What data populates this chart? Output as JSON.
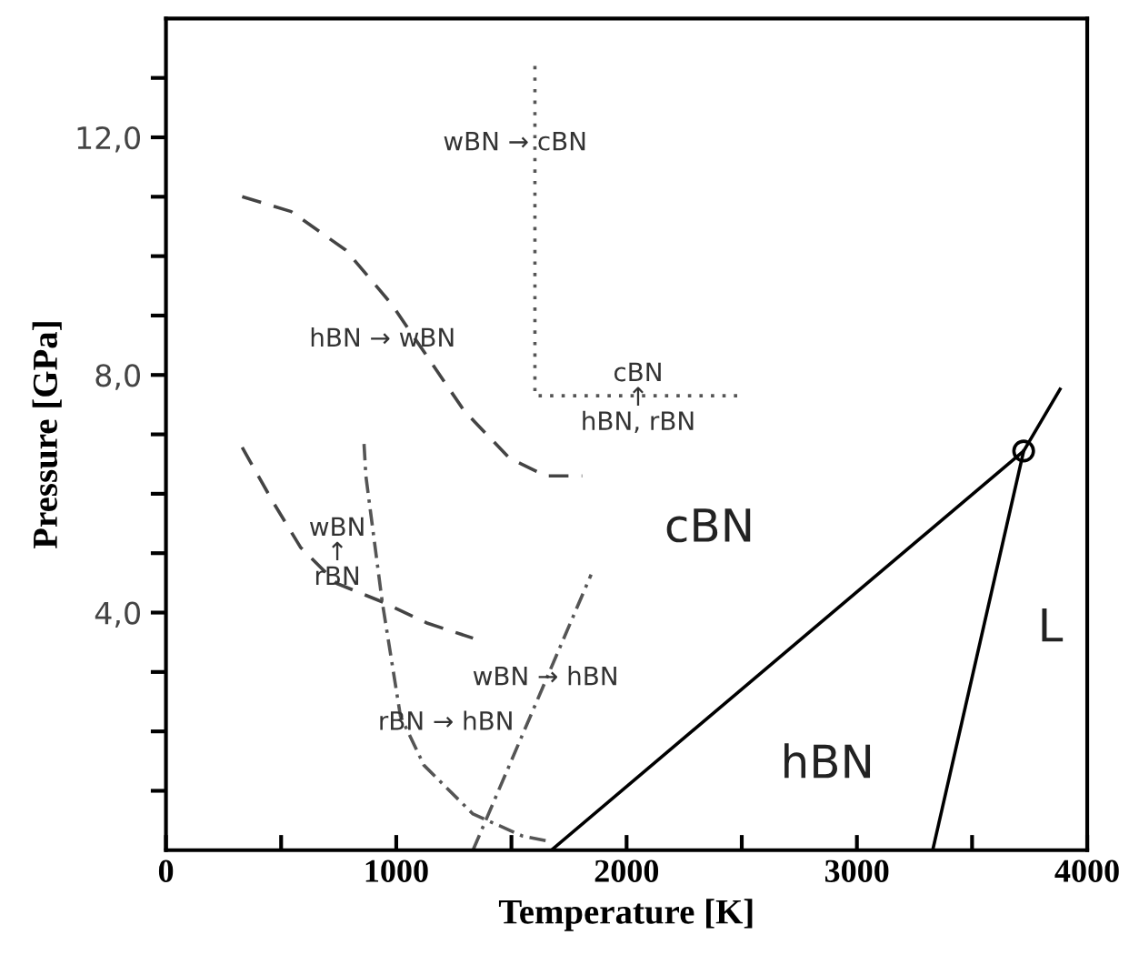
{
  "chart_data": {
    "type": "line",
    "xlabel": "Temperature [K]",
    "ylabel": "Pressure [GPa]",
    "xlim": [
      0,
      4000
    ],
    "ylim": [
      0,
      14
    ],
    "xticks": [
      0,
      {
        "value": 500,
        "label": null
      },
      1000,
      {
        "value": 1500,
        "label": null
      },
      2000,
      {
        "value": 2500,
        "label": null
      },
      3000,
      {
        "value": 3500,
        "label": null
      },
      4000
    ],
    "yticks": [
      {
        "value": 1,
        "label": null
      },
      {
        "value": 2,
        "label": null
      },
      {
        "value": 3,
        "label": null
      },
      {
        "value": 4,
        "label": "4,0"
      },
      {
        "value": 5,
        "label": null
      },
      {
        "value": 6,
        "label": null
      },
      {
        "value": 7,
        "label": null
      },
      {
        "value": 8,
        "label": "8,0"
      },
      {
        "value": 9,
        "label": null
      },
      {
        "value": 10,
        "label": null
      },
      {
        "value": 11,
        "label": null
      },
      {
        "value": 12,
        "label": "12,0"
      },
      {
        "value": 13,
        "label": null
      }
    ],
    "grid": false,
    "legend": false,
    "series": [
      {
        "color": "#000000",
        "line_style": "solid",
        "x": [
          1673,
          3724,
          3882
        ],
        "values": [
          0,
          6.72,
          7.76
        ]
      },
      {
        "color": "#000000",
        "line_style": "solid",
        "x": [
          3329,
          3724
        ],
        "values": [
          0,
          6.72
        ]
      },
      {
        "color": "#444444",
        "line_style": "dashed",
        "x": [
          331,
          544,
          781,
          978,
          1136,
          1294,
          1491,
          1649,
          1807
        ],
        "values": [
          11.0,
          10.75,
          10.1,
          9.2,
          8.3,
          7.4,
          6.6,
          6.3,
          6.3
        ]
      },
      {
        "color": "#444444",
        "line_style": "dashed",
        "x": [
          331,
          465,
          584,
          742,
          939,
          1136,
          1333
        ],
        "values": [
          6.78,
          5.86,
          5.1,
          4.49,
          4.18,
          3.82,
          3.57
        ]
      },
      {
        "color": "#555555",
        "line_style": "dashdot",
        "x": [
          860,
          868,
          939,
          1018,
          1120,
          1333,
          1547,
          1665
        ],
        "values": [
          6.84,
          6.3,
          4.18,
          2.26,
          1.43,
          0.61,
          0.24,
          0.15
        ]
      },
      {
        "color": "#555555",
        "line_style": "dashdot",
        "x": [
          1333,
          1846
        ],
        "values": [
          0,
          4.64
        ]
      },
      {
        "color": "#555555",
        "line_style": "dotted",
        "x": [
          1602,
          1602,
          2493
        ],
        "values": [
          13.2,
          7.65,
          7.65
        ]
      },
      {
        "type": "scatter",
        "color": "#000000",
        "marker": "circle",
        "x": [
          3724
        ],
        "values": [
          6.72
        ]
      }
    ],
    "annotations": [
      "wBN → cBN",
      "hBN → wBN",
      "cBN\n↑\nhBN, rBN",
      "wBN\n↑\nrBN",
      "rBN → hBN",
      "wBN → hBN",
      "cBN",
      "hBN",
      "L"
    ]
  }
}
